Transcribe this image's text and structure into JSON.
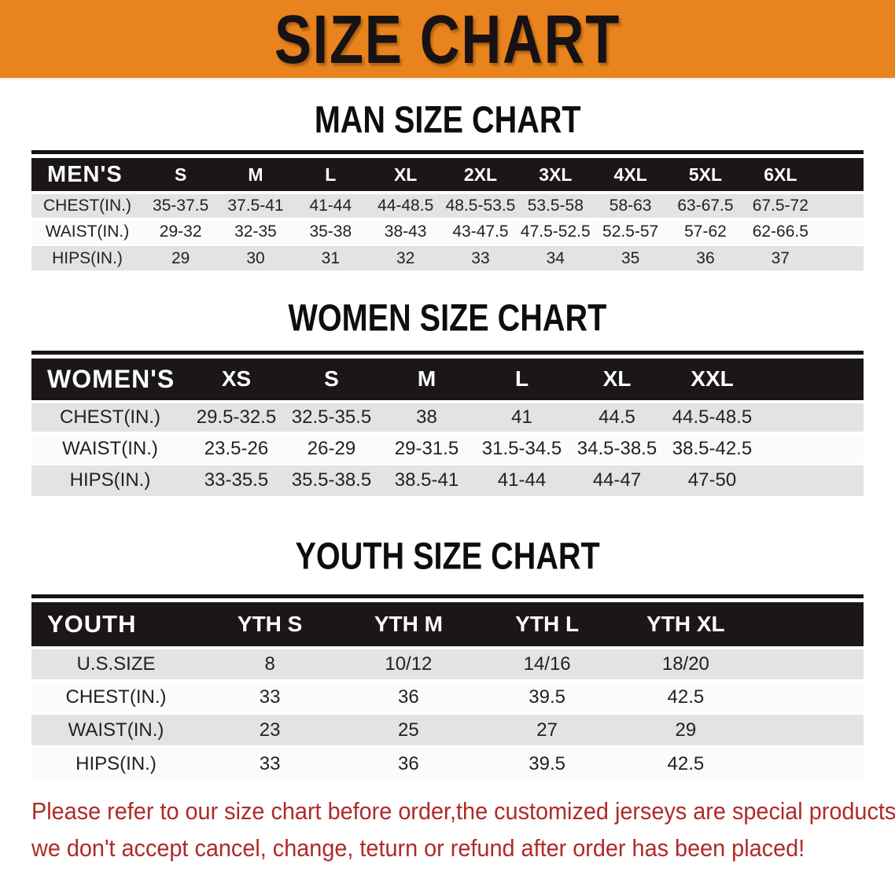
{
  "banner": {
    "title": "SIZE CHART"
  },
  "sections": [
    {
      "id": "men",
      "title": "MAN SIZE CHART",
      "group_label": "MEN'S",
      "sizes": [
        "S",
        "M",
        "L",
        "XL",
        "2XL",
        "3XL",
        "4XL",
        "5XL",
        "6XL"
      ],
      "rows": [
        {
          "label": "CHEST(IN.)",
          "values": [
            "35-37.5",
            "37.5-41",
            "41-44",
            "44-48.5",
            "48.5-53.5",
            "53.5-58",
            "58-63",
            "63-67.5",
            "67.5-72"
          ]
        },
        {
          "label": "WAIST(IN.)",
          "values": [
            "29-32",
            "32-35",
            "35-38",
            "38-43",
            "43-47.5",
            "47.5-52.5",
            "52.5-57",
            "57-62",
            "62-66.5"
          ]
        },
        {
          "label": "HIPS(IN.)",
          "values": [
            "29",
            "30",
            "31",
            "32",
            "33",
            "34",
            "35",
            "36",
            "37"
          ]
        }
      ]
    },
    {
      "id": "women",
      "title": "WOMEN SIZE CHART",
      "group_label": "WOMEN'S",
      "sizes": [
        "XS",
        "S",
        "M",
        "L",
        "XL",
        "XXL"
      ],
      "rows": [
        {
          "label": "CHEST(IN.)",
          "values": [
            "29.5-32.5",
            "32.5-35.5",
            "38",
            "41",
            "44.5",
            "44.5-48.5"
          ]
        },
        {
          "label": "WAIST(IN.)",
          "values": [
            "23.5-26",
            "26-29",
            "29-31.5",
            "31.5-34.5",
            "34.5-38.5",
            "38.5-42.5"
          ]
        },
        {
          "label": "HIPS(IN.)",
          "values": [
            "33-35.5",
            "35.5-38.5",
            "38.5-41",
            "41-44",
            "44-47",
            "47-50"
          ]
        }
      ]
    },
    {
      "id": "youth",
      "title": "YOUTH SIZE CHART",
      "group_label": "YOUTH",
      "sizes": [
        "YTH S",
        "YTH M",
        "YTH L",
        "YTH XL"
      ],
      "rows": [
        {
          "label": "U.S.SIZE",
          "values": [
            "8",
            "10/12",
            "14/16",
            "18/20"
          ]
        },
        {
          "label": "CHEST(IN.)",
          "values": [
            "33",
            "36",
            "39.5",
            "42.5"
          ]
        },
        {
          "label": "WAIST(IN.)",
          "values": [
            "23",
            "25",
            "27",
            "29"
          ]
        },
        {
          "label": "HIPS(IN.)",
          "values": [
            "33",
            "36",
            "39.5",
            "42.5"
          ]
        }
      ]
    }
  ],
  "footer": {
    "line1": "Please refer to our size chart before order,the customized jerseys are special products,",
    "line2": "we don't accept cancel, change, teturn or refund after order has been placed!"
  },
  "colors": {
    "banner_bg": "#E8831E",
    "header_bg": "#1B1718",
    "row_alt": "#E4E3E3",
    "row_base": "#FBFBFB",
    "footer_text": "#B02A28"
  }
}
